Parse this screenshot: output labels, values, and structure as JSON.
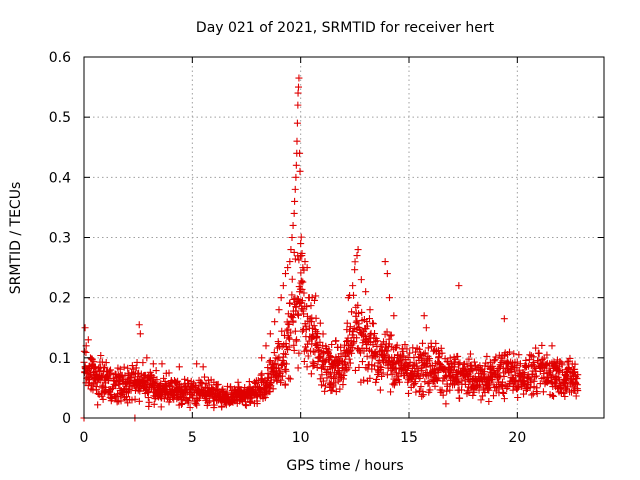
{
  "chart_data": {
    "type": "scatter",
    "title": "Day 021 of 2021, SRMTID for receiver hert",
    "xlabel": "GPS time / hours",
    "ylabel": "SRMTID / TECUs",
    "xlim": [
      0,
      24
    ],
    "ylim": [
      0,
      0.6
    ],
    "xticks": [
      0,
      5,
      10,
      15,
      20
    ],
    "yticks": [
      0,
      0.1,
      0.2,
      0.3,
      0.4,
      0.5,
      0.6
    ],
    "xtick_labels": [
      "0",
      "5",
      "10",
      "15",
      "20"
    ],
    "ytick_labels": [
      "0",
      "0.1",
      "0.2",
      "0.3",
      "0.4",
      "0.5",
      "0.6"
    ],
    "grid": true,
    "marker": "plus",
    "series_color": "#e00000",
    "series": [
      {
        "name": "SRMTID",
        "envelope": {
          "description": "approximate running median of the point cloud, sampled in hours",
          "x": [
            0,
            0.5,
            1,
            1.5,
            2,
            2.5,
            3,
            3.5,
            4,
            4.5,
            5,
            5.5,
            6,
            6.5,
            7,
            7.5,
            8,
            8.5,
            9,
            9.25,
            9.5,
            9.75,
            10,
            10.25,
            10.5,
            11,
            11.5,
            12,
            12.5,
            13,
            13.5,
            14,
            14.5,
            15,
            15.5,
            16,
            16.5,
            17,
            17.5,
            18,
            18.5,
            19,
            19.5,
            20,
            20.5,
            21,
            21.5,
            22,
            22.5,
            22.8
          ],
          "y": [
            0.08,
            0.07,
            0.06,
            0.055,
            0.06,
            0.06,
            0.055,
            0.045,
            0.045,
            0.04,
            0.045,
            0.045,
            0.04,
            0.035,
            0.035,
            0.04,
            0.045,
            0.06,
            0.09,
            0.11,
            0.14,
            0.18,
            0.2,
            0.17,
            0.14,
            0.1,
            0.08,
            0.09,
            0.16,
            0.13,
            0.1,
            0.1,
            0.09,
            0.08,
            0.08,
            0.085,
            0.075,
            0.07,
            0.07,
            0.065,
            0.065,
            0.07,
            0.075,
            0.07,
            0.07,
            0.08,
            0.075,
            0.07,
            0.065,
            0.06
          ]
        },
        "points": [
          [
            0.0,
            0.0
          ],
          [
            0.05,
            0.15
          ],
          [
            0.1,
            0.12
          ],
          [
            0.2,
            0.13
          ],
          [
            0.3,
            0.1
          ],
          [
            2.35,
            0.0
          ],
          [
            2.55,
            0.155
          ],
          [
            2.6,
            0.14
          ],
          [
            2.9,
            0.1
          ],
          [
            3.2,
            0.09
          ],
          [
            3.6,
            0.09
          ],
          [
            4.4,
            0.085
          ],
          [
            5.2,
            0.09
          ],
          [
            5.5,
            0.085
          ],
          [
            8.2,
            0.1
          ],
          [
            8.4,
            0.12
          ],
          [
            8.6,
            0.14
          ],
          [
            8.8,
            0.16
          ],
          [
            9.0,
            0.18
          ],
          [
            9.1,
            0.2
          ],
          [
            9.2,
            0.22
          ],
          [
            9.3,
            0.24
          ],
          [
            9.4,
            0.25
          ],
          [
            9.5,
            0.26
          ],
          [
            9.55,
            0.28
          ],
          [
            9.6,
            0.3
          ],
          [
            9.65,
            0.32
          ],
          [
            9.7,
            0.34
          ],
          [
            9.72,
            0.36
          ],
          [
            9.75,
            0.38
          ],
          [
            9.78,
            0.4
          ],
          [
            9.8,
            0.42
          ],
          [
            9.82,
            0.44
          ],
          [
            9.83,
            0.46
          ],
          [
            9.85,
            0.49
          ],
          [
            9.87,
            0.52
          ],
          [
            9.88,
            0.54
          ],
          [
            9.9,
            0.55
          ],
          [
            9.92,
            0.565
          ],
          [
            9.95,
            0.44
          ],
          [
            9.97,
            0.41
          ],
          [
            10.0,
            0.29
          ],
          [
            10.05,
            0.27
          ],
          [
            10.1,
            0.25
          ],
          [
            10.2,
            0.26
          ],
          [
            10.3,
            0.25
          ],
          [
            10.4,
            0.2
          ],
          [
            10.5,
            0.16
          ],
          [
            12.2,
            0.2
          ],
          [
            12.4,
            0.22
          ],
          [
            12.6,
            0.27
          ],
          [
            12.65,
            0.28
          ],
          [
            12.8,
            0.23
          ],
          [
            13.0,
            0.21
          ],
          [
            13.2,
            0.18
          ],
          [
            13.9,
            0.26
          ],
          [
            14.0,
            0.24
          ],
          [
            14.1,
            0.2
          ],
          [
            14.3,
            0.17
          ],
          [
            15.7,
            0.17
          ],
          [
            15.8,
            0.15
          ],
          [
            17.3,
            0.22
          ],
          [
            19.4,
            0.165
          ],
          [
            21.6,
            0.12
          ]
        ]
      }
    ]
  }
}
